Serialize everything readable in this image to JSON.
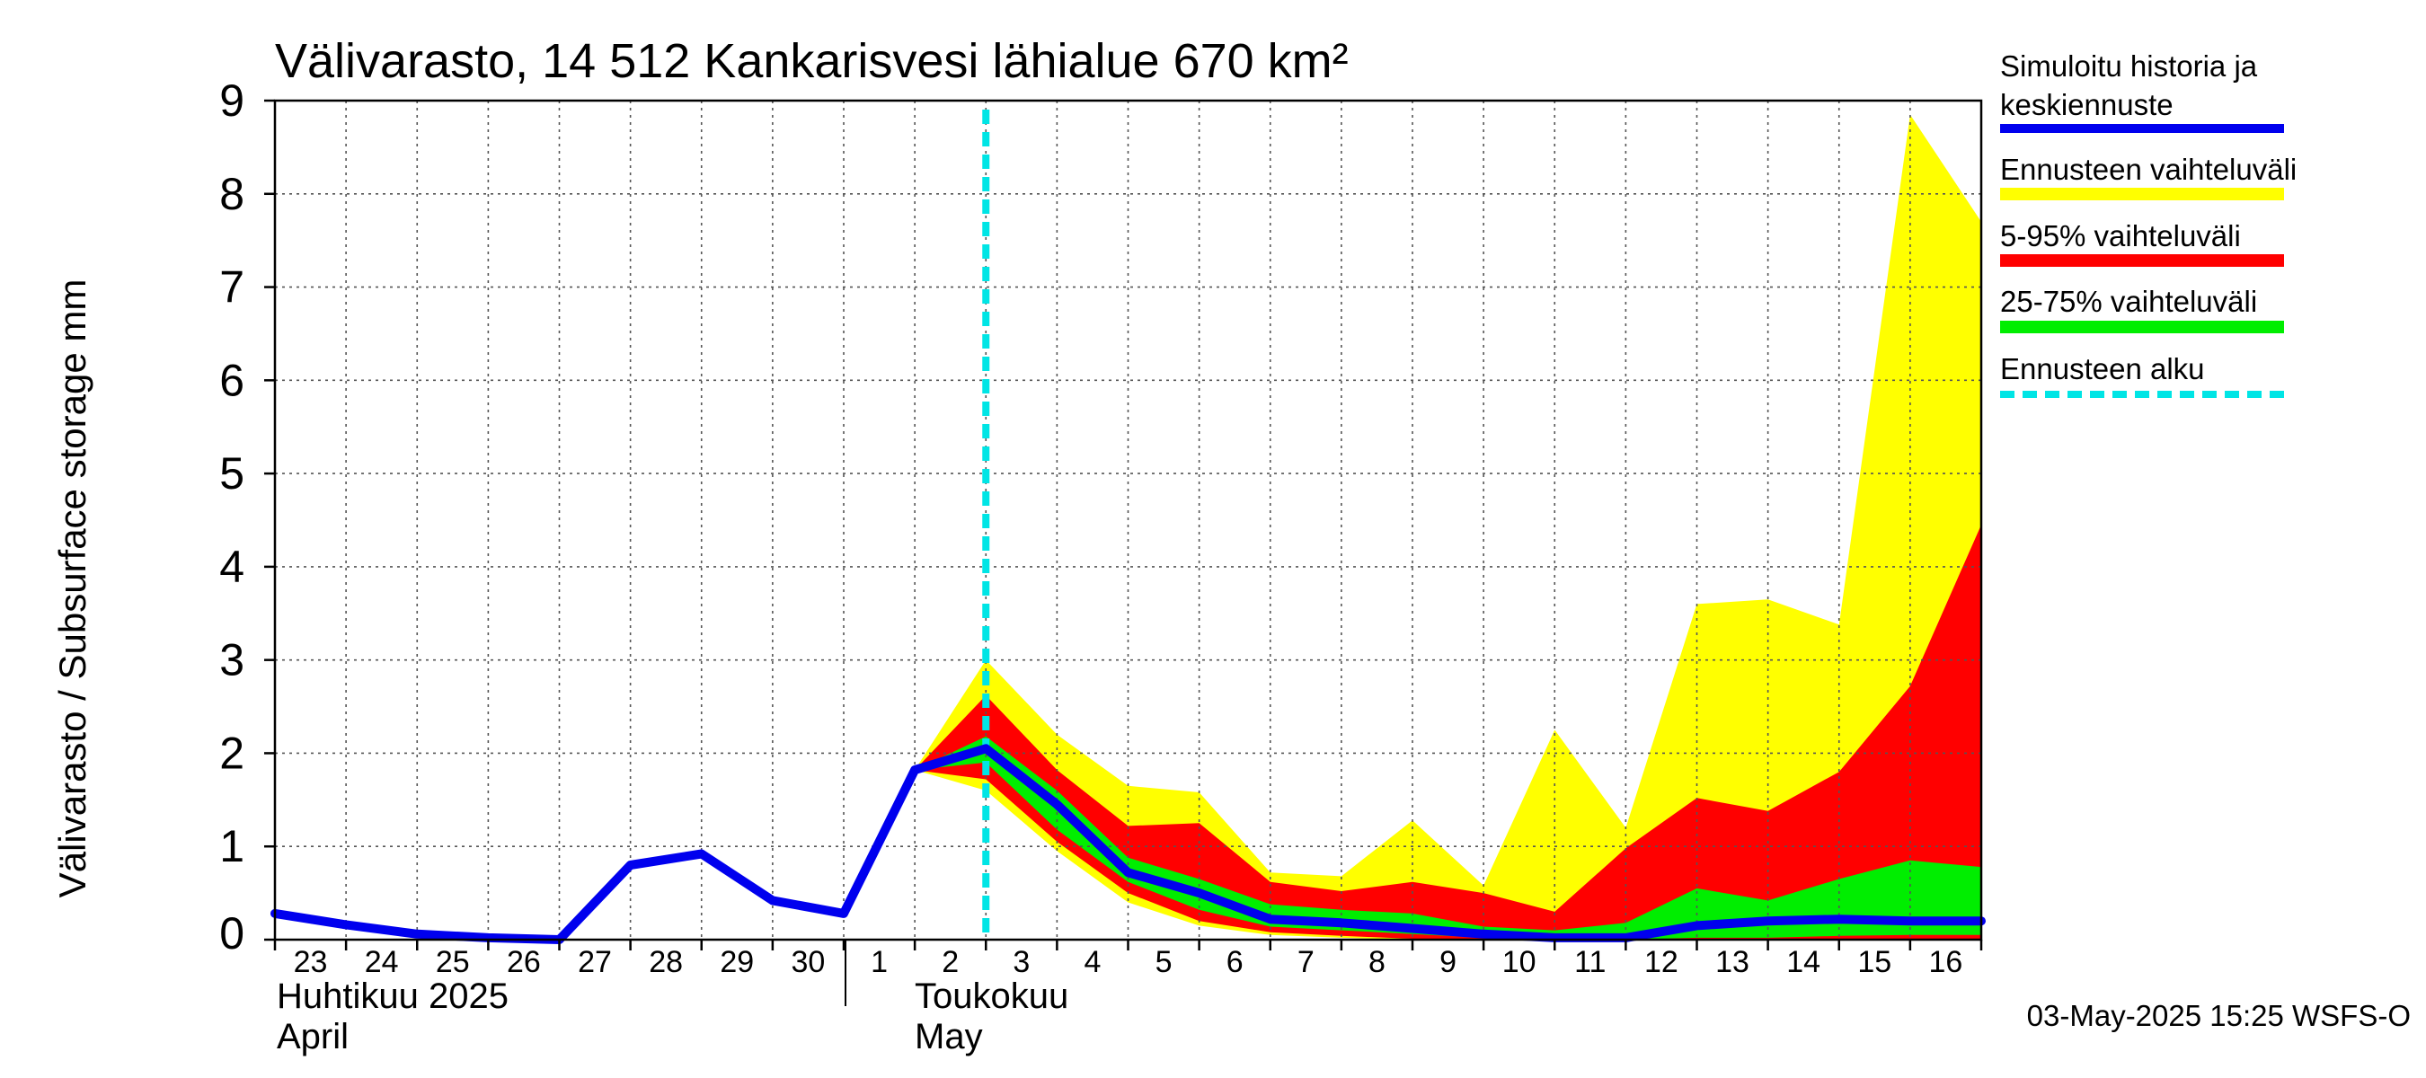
{
  "title": "Välivarasto, 14 512 Kankarisvesi lähialue 670 km²",
  "footer": "03-May-2025 15:25 WSFS-O",
  "month_labels": {
    "april_fi": "Huhtikuu  2025",
    "april_en": "April",
    "may_fi": "Toukokuu",
    "may_en": "May"
  },
  "legend": {
    "history_line1": "Simuloitu historia ja",
    "history_line2": "keskiennuste",
    "range": "Ennusteen vaihteluväli",
    "p5_95": "5-95% vaihteluväli",
    "p25_75": "25-75% vaihteluväli",
    "forecast_start": "Ennusteen alku"
  },
  "colors": {
    "history": "#0000ee",
    "range": "#ffff00",
    "p5_95": "#ff0000",
    "p25_75": "#00ee00",
    "forecast_start": "#00e5e5"
  },
  "chart_data": {
    "type": "area",
    "title": "Välivarasto, 14 512 Kankarisvesi lähialue 670 km²",
    "ylabel": "Välivarasto / Subsurface storage  mm",
    "xlabel": "",
    "ylim": [
      0,
      9
    ],
    "yticks": [
      0,
      1,
      2,
      3,
      4,
      5,
      6,
      7,
      8,
      9
    ],
    "x_tick_labels": [
      "23",
      "24",
      "25",
      "26",
      "27",
      "28",
      "29",
      "30",
      "1",
      "2",
      "3",
      "4",
      "5",
      "6",
      "7",
      "8",
      "9",
      "10",
      "11",
      "12",
      "13",
      "14",
      "15",
      "16"
    ],
    "x_dates": [
      "2025-04-23",
      "2025-04-24",
      "2025-04-25",
      "2025-04-26",
      "2025-04-27",
      "2025-04-28",
      "2025-04-29",
      "2025-04-30",
      "2025-05-01",
      "2025-05-02",
      "2025-05-03",
      "2025-05-04",
      "2025-05-05",
      "2025-05-06",
      "2025-05-07",
      "2025-05-08",
      "2025-05-09",
      "2025-05-10",
      "2025-05-11",
      "2025-05-12",
      "2025-05-13",
      "2025-05-14",
      "2025-05-15",
      "2025-05-16",
      "2025-05-17"
    ],
    "forecast_start": "2025-05-03",
    "grid": true,
    "legend_position": "right",
    "series": [
      {
        "name": "Simuloitu historia ja keskiennuste",
        "kind": "line",
        "x": [
          "2025-04-23",
          "2025-04-24",
          "2025-04-25",
          "2025-04-26",
          "2025-04-27",
          "2025-04-28",
          "2025-04-29",
          "2025-04-30",
          "2025-05-01",
          "2025-05-02",
          "2025-05-03",
          "2025-05-04",
          "2025-05-05",
          "2025-05-06",
          "2025-05-07",
          "2025-05-08",
          "2025-05-09",
          "2025-05-10",
          "2025-05-11",
          "2025-05-12",
          "2025-05-13",
          "2025-05-14",
          "2025-05-15",
          "2025-05-16",
          "2025-05-17"
        ],
        "values": [
          0.28,
          0.16,
          0.06,
          0.02,
          0.0,
          0.8,
          0.92,
          0.42,
          0.28,
          1.82,
          2.05,
          1.45,
          0.72,
          0.5,
          0.22,
          0.18,
          0.12,
          0.06,
          0.02,
          0.02,
          0.15,
          0.2,
          0.22,
          0.2,
          0.2
        ]
      },
      {
        "name": "Ennusteen vaihteluväli",
        "kind": "band",
        "x": [
          "2025-05-02",
          "2025-05-03",
          "2025-05-04",
          "2025-05-05",
          "2025-05-06",
          "2025-05-07",
          "2025-05-08",
          "2025-05-09",
          "2025-05-10",
          "2025-05-11",
          "2025-05-12",
          "2025-05-13",
          "2025-05-14",
          "2025-05-15",
          "2025-05-16",
          "2025-05-17"
        ],
        "upper": [
          1.82,
          3.0,
          2.2,
          1.65,
          1.58,
          0.72,
          0.68,
          1.28,
          0.58,
          2.25,
          1.2,
          3.6,
          3.65,
          3.38,
          8.85,
          7.7
        ],
        "lower": [
          1.82,
          1.6,
          0.95,
          0.4,
          0.15,
          0.05,
          0.02,
          0.0,
          0.0,
          0.0,
          0.0,
          0.0,
          0.0,
          0.0,
          0.0,
          0.0
        ]
      },
      {
        "name": "5-95% vaihteluväli",
        "kind": "band",
        "x": [
          "2025-05-02",
          "2025-05-03",
          "2025-05-04",
          "2025-05-05",
          "2025-05-06",
          "2025-05-07",
          "2025-05-08",
          "2025-05-09",
          "2025-05-10",
          "2025-05-11",
          "2025-05-12",
          "2025-05-13",
          "2025-05-14",
          "2025-05-15",
          "2025-05-16",
          "2025-05-17"
        ],
        "upper": [
          1.82,
          2.62,
          1.82,
          1.22,
          1.25,
          0.62,
          0.52,
          0.62,
          0.5,
          0.3,
          0.98,
          1.52,
          1.38,
          1.8,
          2.72,
          4.45
        ],
        "lower": [
          1.82,
          1.72,
          1.05,
          0.5,
          0.2,
          0.08,
          0.04,
          0.01,
          0.0,
          0.0,
          0.0,
          0.0,
          0.0,
          0.0,
          0.0,
          0.0
        ]
      },
      {
        "name": "25-75% vaihteluväli",
        "kind": "band",
        "x": [
          "2025-05-02",
          "2025-05-03",
          "2025-05-04",
          "2025-05-05",
          "2025-05-06",
          "2025-05-07",
          "2025-05-08",
          "2025-05-09",
          "2025-05-10",
          "2025-05-11",
          "2025-05-12",
          "2025-05-13",
          "2025-05-14",
          "2025-05-15",
          "2025-05-16",
          "2025-05-17"
        ],
        "upper": [
          1.82,
          2.18,
          1.6,
          0.88,
          0.65,
          0.38,
          0.32,
          0.28,
          0.14,
          0.1,
          0.18,
          0.55,
          0.42,
          0.65,
          0.85,
          0.78
        ],
        "lower": [
          1.82,
          1.9,
          1.18,
          0.62,
          0.32,
          0.14,
          0.1,
          0.06,
          0.02,
          0.0,
          0.0,
          0.02,
          0.02,
          0.04,
          0.05,
          0.05
        ]
      }
    ]
  }
}
